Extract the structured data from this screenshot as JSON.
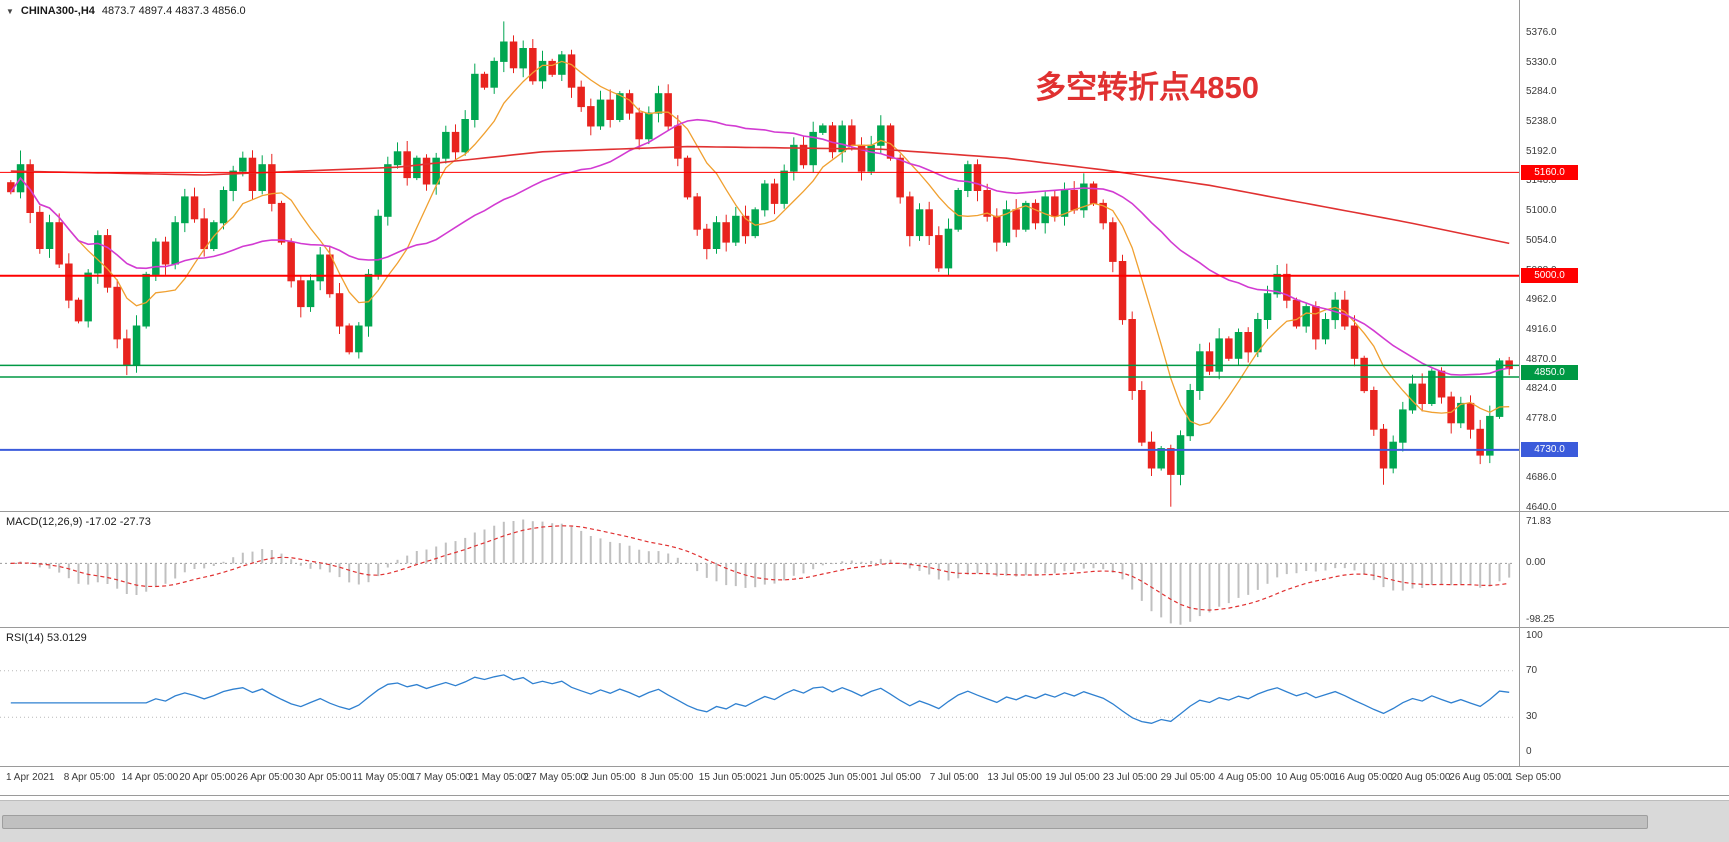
{
  "header": {
    "dropdown_icon": "▼",
    "symbol": "CHINA300-,H4",
    "ohlc": "4873.7 4897.4 4837.3 4856.0"
  },
  "annotation": {
    "text": "多空转折点4850",
    "color": "#e03131"
  },
  "colors": {
    "up": "#00a651",
    "down": "#e8231e",
    "ma_fast": "#f0a030",
    "ma_slow": "#d23bd2",
    "ma_long": "#e03131",
    "macd_hist": "#c0c0c0",
    "macd_signal": "#e03131",
    "rsi_line": "#2f80d0",
    "axis_text": "#3a3a3a",
    "panel_border": "#9a9a9a"
  },
  "price_axis": {
    "ticks": [
      "5376.0",
      "5330.0",
      "5284.0",
      "5238.0",
      "5192.0",
      "5146.0",
      "5100.0",
      "5054.0",
      "5008.0",
      "4962.0",
      "4916.0",
      "4870.0",
      "4824.0",
      "4778.0",
      "4732.0",
      "4686.0",
      "4640.0"
    ]
  },
  "hlines": [
    {
      "price": 5160.0,
      "label": "5160.0",
      "color": "#ff0000",
      "width": 1
    },
    {
      "price": 5000.0,
      "label": "5000.0",
      "color": "#ff0000",
      "width": 2
    },
    {
      "price": 4850.0,
      "label": "4850.0",
      "color": "#009944",
      "width": 1.5,
      "band": [
        4861,
        4843
      ]
    },
    {
      "price": 4730.0,
      "label": "4730.0",
      "color": "#3b5bdb",
      "width": 2
    }
  ],
  "macd": {
    "label": "MACD(12,26,9) -17.02 -27.73",
    "scale": [
      "71.83",
      "0.00",
      "-98.25"
    ],
    "scale_values": [
      71.83,
      0.0,
      -98.25
    ]
  },
  "rsi": {
    "label": "RSI(14) 53.0129",
    "scale": [
      "100",
      "70",
      "30",
      "0"
    ],
    "scale_values": [
      100,
      70,
      30,
      0
    ],
    "levels": [
      70,
      30
    ]
  },
  "chart_data": [
    {
      "type": "candlestick",
      "title": "CHINA300-,H4",
      "ylim": [
        4640,
        5399
      ],
      "x_labels": [
        "1 Apr 2021",
        "8 Apr 05:00",
        "14 Apr 05:00",
        "20 Apr 05:00",
        "26 Apr 05:00",
        "30 Apr 05:00",
        "11 May 05:00",
        "17 May 05:00",
        "21 May 05:00",
        "27 May 05:00",
        "2 Jun 05:00",
        "8 Jun 05:00",
        "15 Jun 05:00",
        "21 Jun 05:00",
        "25 Jun 05:00",
        "1 Jul 05:00",
        "7 Jul 05:00",
        "13 Jul 05:00",
        "19 Jul 05:00",
        "23 Jul 05:00",
        "29 Jul 05:00",
        "4 Aug 05:00",
        "10 Aug 05:00",
        "16 Aug 05:00",
        "20 Aug 05:00",
        "26 Aug 05:00",
        "1 Sep 05:00"
      ],
      "closes": [
        5130,
        5172,
        5098,
        5042,
        5082,
        5018,
        4962,
        4930,
        5004,
        5062,
        4982,
        4902,
        4862,
        4922,
        5002,
        5052,
        5018,
        5082,
        5122,
        5088,
        5042,
        5082,
        5132,
        5162,
        5182,
        5132,
        5172,
        5112,
        5052,
        4992,
        4952,
        4992,
        5032,
        4972,
        4922,
        4882,
        4922,
        5002,
        5092,
        5172,
        5192,
        5152,
        5182,
        5142,
        5182,
        5222,
        5192,
        5242,
        5312,
        5292,
        5332,
        5362,
        5322,
        5352,
        5302,
        5332,
        5312,
        5342,
        5292,
        5262,
        5232,
        5272,
        5242,
        5282,
        5252,
        5212,
        5252,
        5282,
        5232,
        5182,
        5122,
        5072,
        5042,
        5082,
        5052,
        5092,
        5062,
        5102,
        5142,
        5112,
        5162,
        5202,
        5172,
        5222,
        5232,
        5192,
        5232,
        5202,
        5162,
        5202,
        5232,
        5182,
        5122,
        5062,
        5102,
        5062,
        5012,
        5072,
        5132,
        5172,
        5132,
        5092,
        5052,
        5102,
        5072,
        5112,
        5082,
        5122,
        5092,
        5132,
        5102,
        5142,
        5112,
        5082,
        5022,
        4932,
        4822,
        4742,
        4702,
        4732,
        4692,
        4752,
        4822,
        4882,
        4852,
        4902,
        4872,
        4912,
        4882,
        4932,
        4972,
        5002,
        4962,
        4922,
        4952,
        4902,
        4932,
        4962,
        4922,
        4872,
        4822,
        4762,
        4702,
        4742,
        4792,
        4832,
        4802,
        4852,
        4812,
        4772,
        4802,
        4762,
        4722,
        4782,
        4868,
        4856
      ],
      "high_spikes": {
        "1": 5194,
        "51": 5394
      },
      "low_spikes": {
        "12": 4846,
        "120": 4642,
        "142": 4676,
        "152": 4708
      },
      "overlays": [
        {
          "name": "ma-fast-orange",
          "type": "sma",
          "window": 8,
          "color_key": "ma_fast",
          "stroke": 1.3
        },
        {
          "name": "ma-slow-magenta",
          "type": "sma",
          "window": 34,
          "color_key": "ma_slow",
          "stroke": 1.6
        },
        {
          "name": "ma-long-red",
          "type": "points",
          "color_key": "ma_long",
          "stroke": 1.6,
          "points": [
            [
              0,
              5162
            ],
            [
              20,
              5156
            ],
            [
              40,
              5168
            ],
            [
              55,
              5192
            ],
            [
              70,
              5200
            ],
            [
              90,
              5196
            ],
            [
              103,
              5182
            ],
            [
              113,
              5164
            ],
            [
              124,
              5140
            ],
            [
              134,
              5112
            ],
            [
              144,
              5084
            ],
            [
              155,
              5050
            ]
          ]
        }
      ],
      "hline_prices": [
        5160,
        5000,
        4850,
        4730
      ]
    },
    {
      "type": "bar",
      "name": "MACD(12,26,9)",
      "params": [
        12,
        26,
        9
      ],
      "current": [
        -17.02,
        -27.73
      ],
      "ylim": [
        -98.25,
        71.83
      ],
      "derived_from": "closes"
    },
    {
      "type": "line",
      "name": "RSI(14)",
      "period": 14,
      "current": 53.0129,
      "ylim": [
        0,
        100
      ],
      "levels": [
        30,
        70
      ],
      "derived_from": "closes"
    }
  ]
}
